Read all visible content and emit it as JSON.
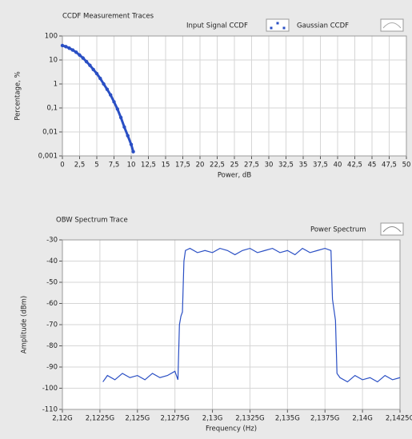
{
  "chart_data": [
    {
      "type": "line",
      "title": "CCDF Measurement Traces",
      "xlabel": "Power, dB",
      "ylabel": "Percentage, %",
      "log_y": true,
      "grid": true,
      "series": [
        {
          "name": "Input Signal CCDF",
          "color": "#2a4fc4",
          "x": [
            0,
            0.5,
            1,
            1.5,
            2,
            2.5,
            3,
            3.5,
            4,
            4.5,
            5,
            5.5,
            6,
            6.5,
            7,
            7.5,
            8,
            8.5,
            9,
            9.5,
            10,
            10.3
          ],
          "values": [
            40,
            36,
            31,
            26,
            21,
            16,
            12,
            8.5,
            6,
            4,
            2.7,
            1.7,
            1,
            0.6,
            0.35,
            0.18,
            0.09,
            0.04,
            0.016,
            0.007,
            0.003,
            0.0015
          ]
        },
        {
          "name": "Gaussian CCDF",
          "color": "#ffffff",
          "x": [],
          "values": []
        }
      ],
      "xlim": [
        0,
        50
      ],
      "xticks": [
        0,
        {
          "value": 2.5,
          "label": "2,5"
        },
        5,
        {
          "value": 7.5,
          "label": "7,5"
        },
        10,
        {
          "value": 12.5,
          "label": "12,5"
        },
        15,
        {
          "value": 17.5,
          "label": "17,5"
        },
        20,
        {
          "value": 22.5,
          "label": "22,5"
        },
        25,
        {
          "value": 27.5,
          "label": "27,5"
        },
        30,
        {
          "value": 32.5,
          "label": "32,5"
        },
        35,
        {
          "value": 37.5,
          "label": "37,5"
        },
        40,
        {
          "value": 42.5,
          "label": "42,5"
        },
        45,
        {
          "value": 47.5,
          "label": "47,5"
        },
        50
      ],
      "ylim": [
        0.001,
        100
      ],
      "yticks": [
        100,
        10,
        1,
        {
          "value": 0.1,
          "label": "0,1"
        },
        {
          "value": 0.01,
          "label": "0,01"
        },
        {
          "value": 0.001,
          "label": "0,001"
        }
      ]
    },
    {
      "type": "line",
      "title": "OBW Spectrum Trace",
      "xlabel": "Frequency (Hz)",
      "ylabel": "Amplitude (dBm)",
      "log_y": false,
      "grid": true,
      "series": [
        {
          "name": "Power Spectrum",
          "color": "#2a4fc4",
          "x": [
            2122700000,
            2123000000,
            2123500000,
            2124000000,
            2124500000,
            2125000000,
            2125500000,
            2126000000,
            2126500000,
            2127000000,
            2127500000,
            2127700000,
            2127800000,
            2127900000,
            2128000000,
            2128100000,
            2128200000,
            2128500000,
            2129000000,
            2129500000,
            2130000000,
            2130500000,
            2131000000,
            2131500000,
            2132000000,
            2132500000,
            2133000000,
            2133500000,
            2134000000,
            2134500000,
            2135000000,
            2135500000,
            2136000000,
            2136500000,
            2137000000,
            2137500000,
            2137900000,
            2138000000,
            2138100000,
            2138200000,
            2138300000,
            2138500000,
            2139000000,
            2139500000,
            2140000000,
            2140500000,
            2141000000,
            2141500000,
            2142000000,
            2142500000
          ],
          "values": [
            -97,
            -94,
            -96,
            -93,
            -95,
            -94,
            -96,
            -93,
            -95,
            -94,
            -92,
            -96,
            -70,
            -66,
            -64,
            -40,
            -35,
            -34,
            -36,
            -35,
            -36,
            -34,
            -35,
            -37,
            -35,
            -34,
            -36,
            -35,
            -34,
            -36,
            -35,
            -37,
            -34,
            -36,
            -35,
            -34,
            -35,
            -58,
            -63,
            -68,
            -93,
            -95,
            -97,
            -94,
            -96,
            -95,
            -97,
            -94,
            -96,
            -95
          ]
        }
      ],
      "xlim": [
        2120000000,
        2142500000
      ],
      "xticks": [
        {
          "value": 2120000000,
          "label": "2,12G"
        },
        {
          "value": 2122500000,
          "label": "2,1225G"
        },
        {
          "value": 2125000000,
          "label": "2,125G"
        },
        {
          "value": 2127500000,
          "label": "2,1275G"
        },
        {
          "value": 2130000000,
          "label": "2,13G"
        },
        {
          "value": 2132500000,
          "label": "2,1325G"
        },
        {
          "value": 2135000000,
          "label": "2,135G"
        },
        {
          "value": 2137500000,
          "label": "2,1375G"
        },
        {
          "value": 2140000000,
          "label": "2,14G"
        },
        {
          "value": 2142500000,
          "label": "2,1425G"
        }
      ],
      "ylim": [
        -110,
        -30
      ],
      "yticks": [
        -30,
        -40,
        -50,
        -60,
        -70,
        -80,
        -90,
        -100,
        -110
      ]
    }
  ]
}
